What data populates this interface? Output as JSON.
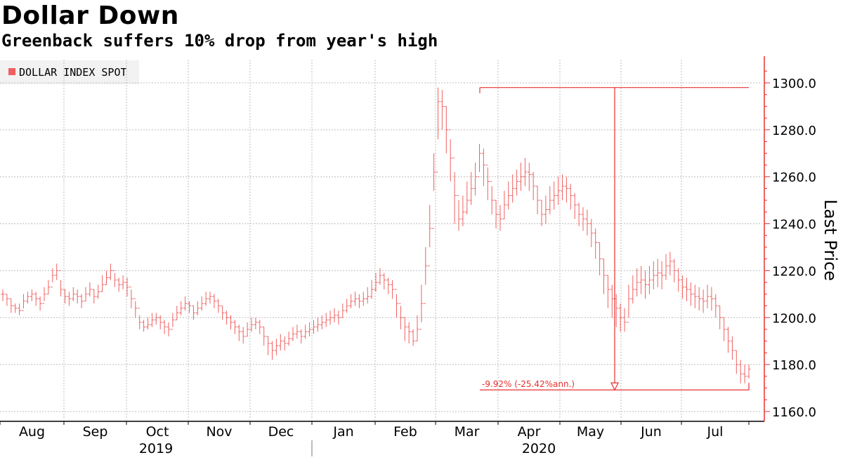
{
  "header": {
    "title": "Dollar Down",
    "subtitle": "Greenback suffers 10% drop from year's high"
  },
  "colors": {
    "series": "#e8302e",
    "series_light": "#f06060",
    "grid": "#bdbdbd",
    "legend_bg": "#f2f2f2"
  },
  "chart_data": {
    "type": "line",
    "style": "ohlc-bars",
    "title": "Dollar Down",
    "subtitle": "Greenback suffers 10% drop from year's high",
    "ylabel": "Last Price",
    "xlabel": "",
    "ylim": [
      1156,
      1310
    ],
    "yticks": [
      "1160.0",
      "1180.0",
      "1200.0",
      "1220.0",
      "1240.0",
      "1260.0",
      "1280.0",
      "1300.0"
    ],
    "x_month_ticks": [
      "Aug",
      "Sep",
      "Oct",
      "Nov",
      "Dec",
      "Jan",
      "Feb",
      "Mar",
      "Apr",
      "May",
      "Jun",
      "Jul"
    ],
    "x_year_labels": [
      "2019",
      "2020"
    ],
    "grid": true,
    "legend_position": "top-left",
    "series": [
      {
        "name": "DOLLAR INDEX SPOT",
        "x_start": "2019-07-29",
        "x_end": "2020-07-24",
        "values": [
          1210,
          1208,
          1205,
          1204,
          1203,
          1207,
          1209,
          1210,
          1208,
          1206,
          1210,
          1213,
          1218,
          1220,
          1212,
          1209,
          1208,
          1210,
          1209,
          1207,
          1210,
          1212,
          1209,
          1211,
          1214,
          1217,
          1220,
          1216,
          1214,
          1215,
          1213,
          1208,
          1204,
          1198,
          1196,
          1197,
          1199,
          1200,
          1198,
          1196,
          1195,
          1199,
          1202,
          1204,
          1206,
          1205,
          1202,
          1204,
          1206,
          1208,
          1209,
          1207,
          1205,
          1202,
          1200,
          1198,
          1196,
          1194,
          1192,
          1195,
          1197,
          1198,
          1196,
          1192,
          1189,
          1186,
          1188,
          1190,
          1189,
          1191,
          1193,
          1194,
          1192,
          1194,
          1195,
          1196,
          1197,
          1198,
          1199,
          1200,
          1201,
          1200,
          1203,
          1205,
          1207,
          1208,
          1207,
          1208,
          1209,
          1212,
          1215,
          1218,
          1216,
          1214,
          1212,
          1206,
          1200,
          1196,
          1194,
          1190,
          1195,
          1206,
          1222,
          1238,
          1262,
          1292,
          1290,
          1280,
          1268,
          1252,
          1242,
          1245,
          1250,
          1255,
          1260,
          1270,
          1265,
          1258,
          1250,
          1244,
          1242,
          1248,
          1252,
          1255,
          1258,
          1260,
          1262,
          1261,
          1256,
          1250,
          1244,
          1246,
          1250,
          1252,
          1254,
          1256,
          1255,
          1252,
          1248,
          1244,
          1242,
          1240,
          1236,
          1232,
          1225,
          1218,
          1212,
          1208,
          1204,
          1200,
          1198,
          1208,
          1212,
          1215,
          1216,
          1214,
          1216,
          1218,
          1219,
          1218,
          1222,
          1224,
          1220,
          1216,
          1213,
          1212,
          1210,
          1209,
          1208,
          1207,
          1209,
          1208,
          1205,
          1200,
          1195,
          1190,
          1186,
          1180,
          1176,
          1175,
          1178
        ],
        "highs": [
          1212,
          1210,
          1208,
          1206,
          1206,
          1210,
          1211,
          1212,
          1211,
          1209,
          1213,
          1216,
          1221,
          1223,
          1216,
          1212,
          1211,
          1213,
          1212,
          1210,
          1213,
          1215,
          1212,
          1214,
          1218,
          1220,
          1223,
          1219,
          1217,
          1218,
          1217,
          1212,
          1207,
          1201,
          1199,
          1200,
          1202,
          1202,
          1201,
          1199,
          1198,
          1202,
          1205,
          1207,
          1209,
          1207,
          1205,
          1207,
          1209,
          1211,
          1211,
          1210,
          1208,
          1205,
          1203,
          1201,
          1199,
          1197,
          1196,
          1198,
          1200,
          1200,
          1199,
          1196,
          1192,
          1190,
          1191,
          1193,
          1192,
          1194,
          1196,
          1197,
          1195,
          1197,
          1198,
          1199,
          1200,
          1201,
          1202,
          1203,
          1204,
          1203,
          1206,
          1208,
          1210,
          1211,
          1210,
          1211,
          1213,
          1216,
          1219,
          1221,
          1219,
          1217,
          1216,
          1210,
          1205,
          1200,
          1198,
          1195,
          1201,
          1214,
          1230,
          1248,
          1270,
          1298,
          1297,
          1290,
          1276,
          1262,
          1250,
          1252,
          1258,
          1262,
          1266,
          1274,
          1272,
          1264,
          1256,
          1250,
          1248,
          1254,
          1258,
          1261,
          1263,
          1266,
          1268,
          1266,
          1262,
          1256,
          1250,
          1252,
          1256,
          1258,
          1260,
          1261,
          1260,
          1257,
          1253,
          1249,
          1247,
          1246,
          1242,
          1238,
          1232,
          1225,
          1218,
          1214,
          1210,
          1206,
          1204,
          1214,
          1218,
          1221,
          1222,
          1220,
          1222,
          1224,
          1225,
          1224,
          1227,
          1228,
          1225,
          1221,
          1218,
          1217,
          1215,
          1214,
          1213,
          1212,
          1214,
          1213,
          1210,
          1205,
          1200,
          1196,
          1192,
          1186,
          1182,
          1180,
          1180
        ],
        "lows": [
          1207,
          1205,
          1202,
          1202,
          1201,
          1204,
          1206,
          1207,
          1205,
          1203,
          1207,
          1210,
          1215,
          1216,
          1209,
          1206,
          1205,
          1207,
          1206,
          1204,
          1207,
          1209,
          1206,
          1208,
          1211,
          1214,
          1216,
          1213,
          1211,
          1212,
          1209,
          1204,
          1200,
          1195,
          1194,
          1195,
          1196,
          1197,
          1195,
          1193,
          1192,
          1196,
          1199,
          1201,
          1203,
          1202,
          1199,
          1201,
          1203,
          1205,
          1206,
          1204,
          1202,
          1199,
          1197,
          1195,
          1193,
          1190,
          1189,
          1192,
          1194,
          1195,
          1193,
          1188,
          1184,
          1182,
          1184,
          1186,
          1186,
          1188,
          1190,
          1191,
          1189,
          1191,
          1192,
          1193,
          1194,
          1195,
          1196,
          1197,
          1198,
          1197,
          1200,
          1202,
          1204,
          1205,
          1204,
          1205,
          1206,
          1208,
          1211,
          1214,
          1212,
          1210,
          1208,
          1200,
          1195,
          1190,
          1189,
          1188,
          1190,
          1198,
          1214,
          1230,
          1254,
          1276,
          1280,
          1270,
          1258,
          1240,
          1237,
          1239,
          1244,
          1248,
          1252,
          1262,
          1256,
          1250,
          1244,
          1238,
          1237,
          1242,
          1246,
          1249,
          1252,
          1254,
          1256,
          1254,
          1250,
          1244,
          1239,
          1240,
          1244,
          1246,
          1248,
          1250,
          1249,
          1246,
          1242,
          1239,
          1237,
          1235,
          1230,
          1225,
          1218,
          1210,
          1204,
          1200,
          1196,
          1194,
          1194,
          1200,
          1206,
          1209,
          1210,
          1208,
          1210,
          1212,
          1213,
          1212,
          1216,
          1218,
          1215,
          1211,
          1208,
          1207,
          1205,
          1204,
          1203,
          1202,
          1204,
          1203,
          1200,
          1195,
          1190,
          1185,
          1182,
          1176,
          1172,
          1172,
          1174
        ]
      }
    ],
    "annotations": [
      {
        "type": "range",
        "from_value": 1298.0,
        "to_value": 1169.2,
        "label": "-9.92% (-25.42%ann.)"
      }
    ]
  }
}
